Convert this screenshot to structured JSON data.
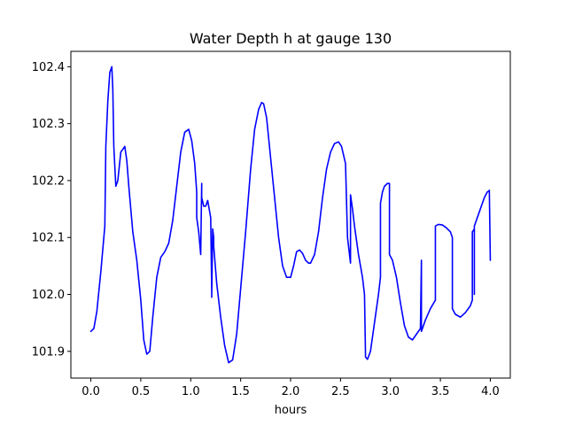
{
  "chart_data": {
    "type": "line",
    "title": "Water Depth h at gauge 130",
    "xlabel": "hours",
    "ylabel": "",
    "xlim": [
      -0.2,
      4.2
    ],
    "ylim": [
      101.853,
      102.427
    ],
    "xticks": [
      "0.0",
      "0.5",
      "1.0",
      "1.5",
      "2.0",
      "2.5",
      "3.0",
      "3.5",
      "4.0"
    ],
    "xtick_values": [
      0.0,
      0.5,
      1.0,
      1.5,
      2.0,
      2.5,
      3.0,
      3.5,
      4.0
    ],
    "yticks": [
      "101.9",
      "102.0",
      "102.1",
      "102.2",
      "102.3",
      "102.4"
    ],
    "ytick_values": [
      101.9,
      102.0,
      102.1,
      102.2,
      102.3,
      102.4
    ],
    "grid": false,
    "legend": "none",
    "line_color": "#0000ff",
    "series": [
      {
        "x": [
          0.0,
          0.03,
          0.06,
          0.1,
          0.14,
          0.15,
          0.15,
          0.17,
          0.19,
          0.21,
          0.22,
          0.23,
          0.25,
          0.27,
          0.3,
          0.34,
          0.36,
          0.38,
          0.42,
          0.46,
          0.5,
          0.53,
          0.56,
          0.59,
          0.62,
          0.66,
          0.7,
          0.74,
          0.78,
          0.82,
          0.86,
          0.9,
          0.94,
          0.98,
          1.01,
          1.04,
          1.06,
          1.06,
          1.08,
          1.1,
          1.11,
          1.11,
          1.13,
          1.15,
          1.17,
          1.18,
          1.2,
          1.21,
          1.21,
          1.22,
          1.23,
          1.23,
          1.26,
          1.3,
          1.34,
          1.38,
          1.42,
          1.46,
          1.5,
          1.55,
          1.6,
          1.64,
          1.68,
          1.71,
          1.73,
          1.76,
          1.8,
          1.84,
          1.88,
          1.92,
          1.96,
          2.0,
          2.03,
          2.06,
          2.09,
          2.12,
          2.15,
          2.18,
          2.2,
          2.24,
          2.28,
          2.32,
          2.36,
          2.4,
          2.44,
          2.48,
          2.51,
          2.55,
          2.57,
          2.57,
          2.6,
          2.6,
          2.62,
          2.64,
          2.68,
          2.72,
          2.74,
          2.75,
          2.75,
          2.77,
          2.8,
          2.84,
          2.88,
          2.9,
          2.9,
          2.92,
          2.94,
          2.97,
          2.99,
          2.99,
          3.02,
          3.06,
          3.1,
          3.14,
          3.18,
          3.22,
          3.26,
          3.3,
          3.31,
          3.31,
          3.32,
          3.35,
          3.4,
          3.45,
          3.45,
          3.48,
          3.52,
          3.56,
          3.6,
          3.62,
          3.62,
          3.65,
          3.7,
          3.75,
          3.8,
          3.82,
          3.82,
          3.84,
          3.84,
          3.84,
          3.86,
          3.9,
          3.94,
          3.97,
          3.99,
          3.99,
          4.0
        ],
        "y": [
          101.935,
          101.94,
          101.97,
          102.04,
          102.12,
          102.26,
          102.26,
          102.34,
          102.39,
          102.4,
          102.36,
          102.26,
          102.19,
          102.2,
          102.25,
          102.26,
          102.235,
          102.19,
          102.11,
          102.06,
          101.99,
          101.92,
          101.895,
          101.9,
          101.96,
          102.03,
          102.065,
          102.075,
          102.09,
          102.13,
          102.19,
          102.25,
          102.285,
          102.29,
          102.27,
          102.23,
          102.18,
          102.135,
          102.11,
          102.07,
          102.195,
          102.17,
          102.155,
          102.155,
          102.165,
          102.155,
          102.135,
          102.01,
          101.995,
          102.115,
          102.1,
          102.085,
          102.02,
          101.96,
          101.91,
          101.88,
          101.885,
          101.93,
          102.01,
          102.11,
          102.22,
          102.29,
          102.325,
          102.337,
          102.335,
          102.31,
          102.24,
          102.17,
          102.1,
          102.05,
          102.03,
          102.03,
          102.05,
          102.075,
          102.078,
          102.072,
          102.06,
          102.055,
          102.055,
          102.07,
          102.11,
          102.17,
          102.22,
          102.25,
          102.265,
          102.268,
          102.26,
          102.23,
          102.1,
          102.1,
          102.055,
          102.175,
          102.15,
          102.12,
          102.07,
          102.03,
          102.0,
          101.895,
          101.89,
          101.886,
          101.9,
          101.95,
          102.0,
          102.03,
          102.16,
          102.18,
          102.19,
          102.195,
          102.195,
          102.07,
          102.06,
          102.03,
          101.985,
          101.945,
          101.925,
          101.92,
          101.93,
          101.94,
          102.06,
          101.935,
          101.94,
          101.955,
          101.975,
          101.99,
          102.12,
          102.123,
          102.122,
          102.117,
          102.11,
          102.1,
          101.975,
          101.965,
          101.96,
          101.968,
          101.98,
          101.99,
          102.11,
          102.115,
          102.0,
          102.12,
          102.13,
          102.15,
          102.17,
          102.18,
          102.182,
          102.183,
          102.06
        ]
      }
    ]
  }
}
